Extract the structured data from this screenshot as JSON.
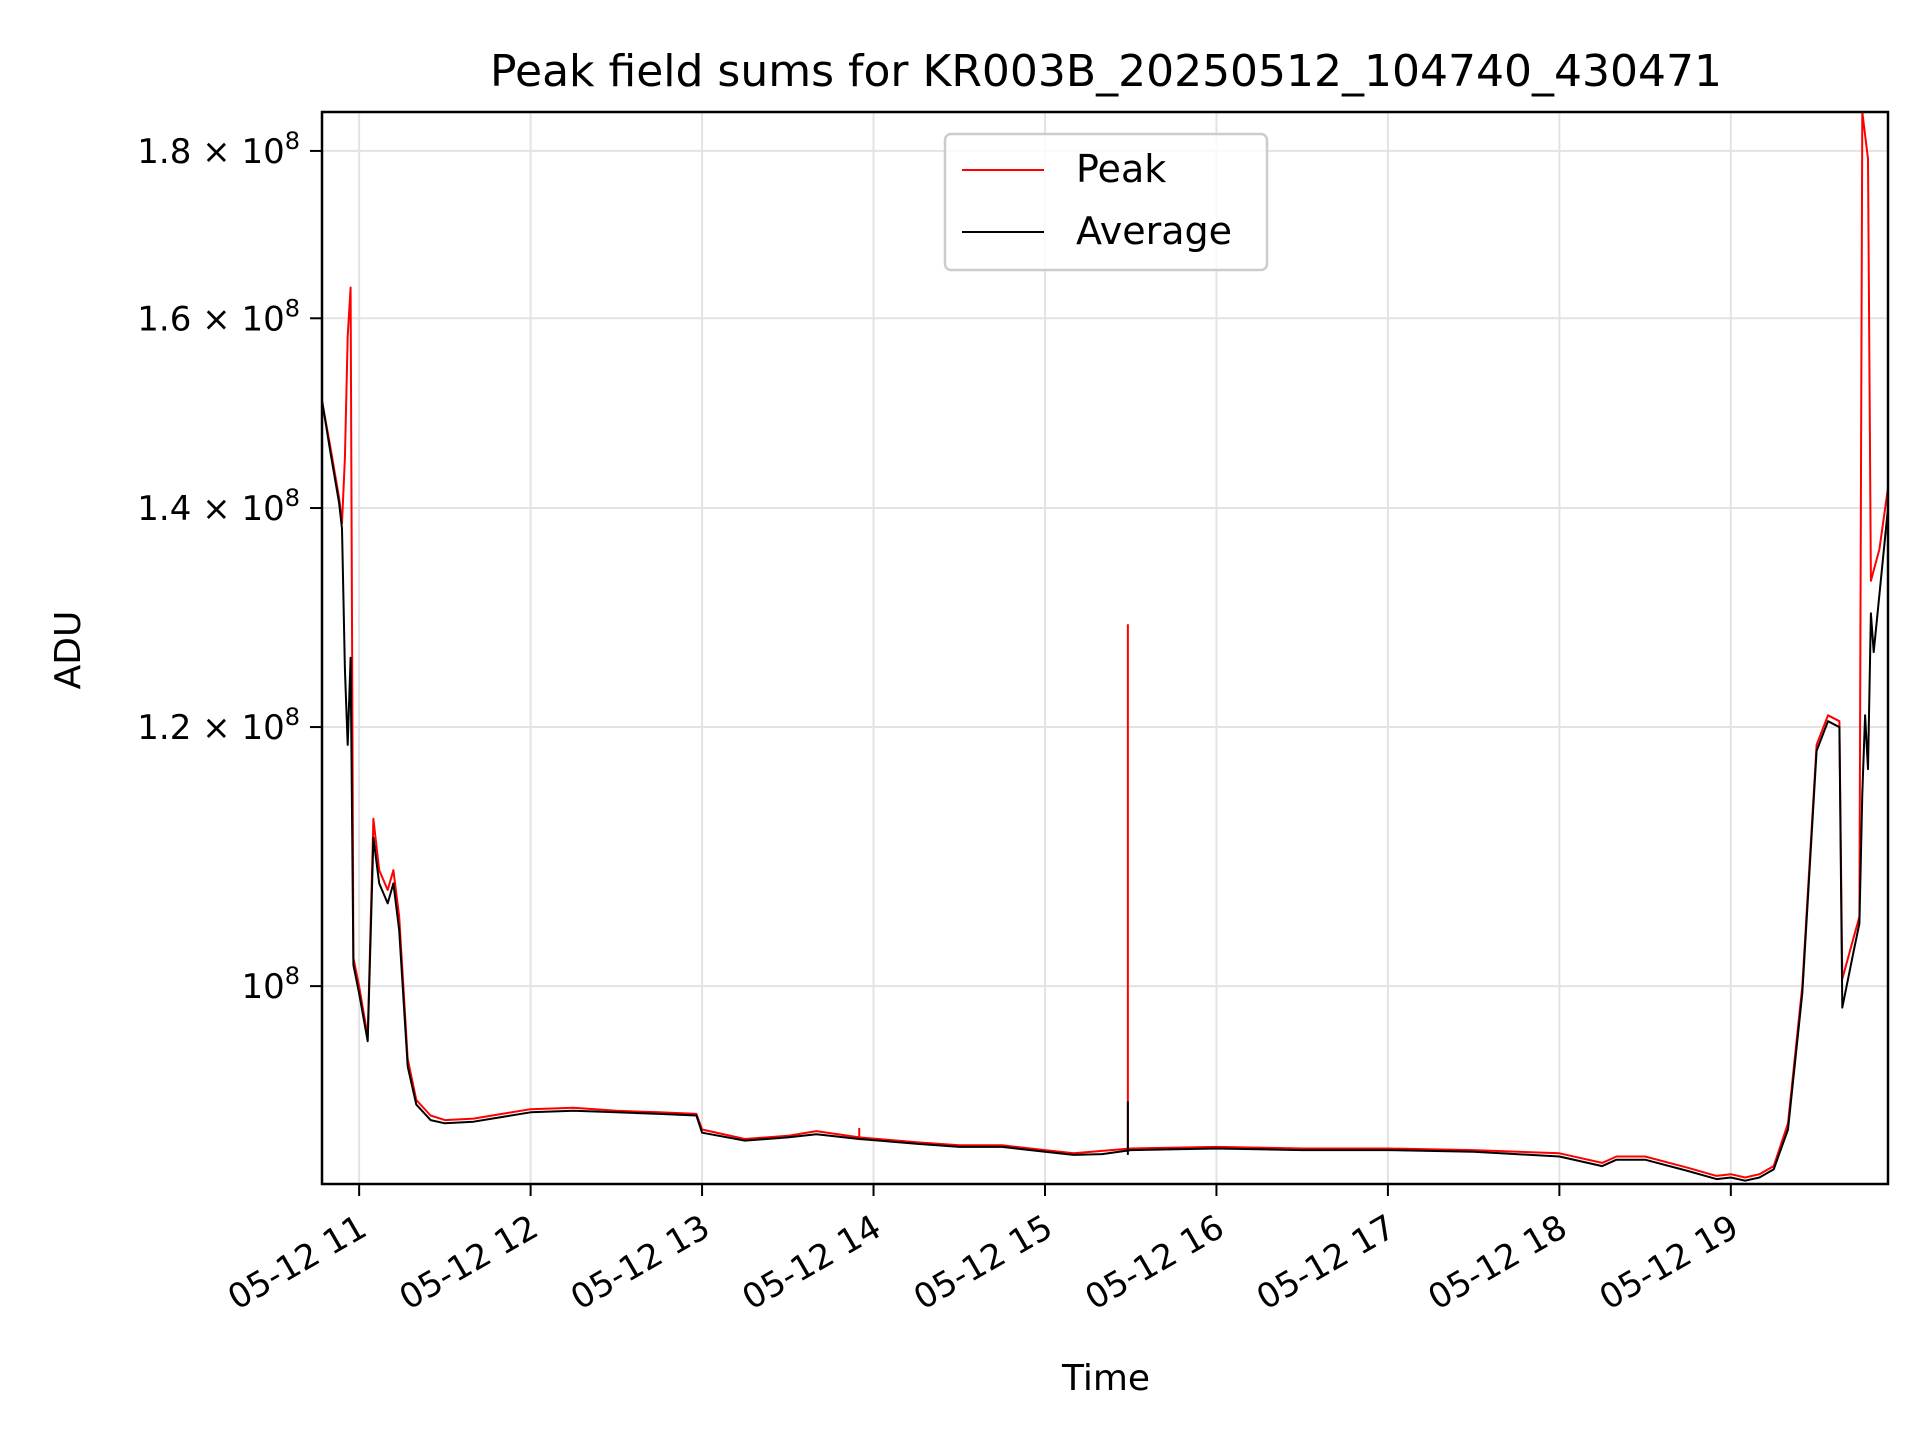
{
  "chart_data": {
    "type": "line",
    "title": "Peak field sums for KR003B_20250512_104740_430471",
    "xlabel": "Time",
    "ylabel": "ADU",
    "yscale": "log",
    "xlim": [
      "05-12 10:47",
      "05-12 19:55"
    ],
    "ylim": [
      87000000,
      185000000
    ],
    "x_ticks": [
      {
        "label": "05-12 11",
        "time": "05-12 11:00"
      },
      {
        "label": "05-12 12",
        "time": "05-12 12:00"
      },
      {
        "label": "05-12 13",
        "time": "05-12 13:00"
      },
      {
        "label": "05-12 14",
        "time": "05-12 14:00"
      },
      {
        "label": "05-12 15",
        "time": "05-12 15:00"
      },
      {
        "label": "05-12 16",
        "time": "05-12 16:00"
      },
      {
        "label": "05-12 17",
        "time": "05-12 17:00"
      },
      {
        "label": "05-12 18",
        "time": "05-12 18:00"
      },
      {
        "label": "05-12 19",
        "time": "05-12 19:00"
      }
    ],
    "y_ticks": [
      {
        "mantissa": "",
        "exp": "8",
        "value": 100000000
      },
      {
        "mantissa": "1.2",
        "exp": "8",
        "value": 120000000
      },
      {
        "mantissa": "1.4",
        "exp": "8",
        "value": 140000000
      },
      {
        "mantissa": "1.6",
        "exp": "8",
        "value": 160000000
      },
      {
        "mantissa": "1.8",
        "exp": "8",
        "value": 180000000
      }
    ],
    "grid": true,
    "legend_position": "upper center",
    "series": [
      {
        "name": "Peak",
        "color": "#ff0000",
        "points": [
          [
            "05-12 10:47",
            151000000
          ],
          [
            "05-12 10:50",
            146000000
          ],
          [
            "05-12 10:53",
            141000000
          ],
          [
            "05-12 10:54",
            138500000
          ],
          [
            "05-12 10:55",
            145000000
          ],
          [
            "05-12 10:56",
            158000000
          ],
          [
            "05-12 10:57",
            163500000
          ],
          [
            "05-12 10:58",
            102000000
          ],
          [
            "05-12 11:00",
            100000000
          ],
          [
            "05-12 11:03",
            96500000
          ],
          [
            "05-12 11:05",
            112500000
          ],
          [
            "05-12 11:07",
            108500000
          ],
          [
            "05-12 11:10",
            107000000
          ],
          [
            "05-12 11:12",
            108500000
          ],
          [
            "05-12 11:14",
            105000000
          ],
          [
            "05-12 11:17",
            95000000
          ],
          [
            "05-12 11:20",
            92300000
          ],
          [
            "05-12 11:25",
            91300000
          ],
          [
            "05-12 11:30",
            91000000
          ],
          [
            "05-12 11:40",
            91100000
          ],
          [
            "05-12 11:50",
            91400000
          ],
          [
            "05-12 12:00",
            91700000
          ],
          [
            "05-12 12:15",
            91800000
          ],
          [
            "05-12 12:30",
            91600000
          ],
          [
            "05-12 12:45",
            91500000
          ],
          [
            "05-12 12:58",
            91400000
          ],
          [
            "05-12 13:00",
            90400000
          ],
          [
            "05-12 13:15",
            89800000
          ],
          [
            "05-12 13:30",
            90000000
          ],
          [
            "05-12 13:40",
            90300000
          ],
          [
            "05-12 13:55",
            89900000
          ],
          [
            "05-12 14:15",
            89600000
          ],
          [
            "05-12 14:30",
            89400000
          ],
          [
            "05-12 14:45",
            89400000
          ],
          [
            "05-12 15:00",
            89100000
          ],
          [
            "05-12 15:10",
            88900000
          ],
          [
            "05-12 15:20",
            89050000
          ],
          [
            "05-12 15:30",
            89200000
          ],
          [
            "05-12 16:00",
            89300000
          ],
          [
            "05-12 16:30",
            89200000
          ],
          [
            "05-12 17:00",
            89200000
          ],
          [
            "05-12 17:30",
            89100000
          ],
          [
            "05-12 18:00",
            88900000
          ],
          [
            "05-12 18:15",
            88300000
          ],
          [
            "05-12 18:20",
            88700000
          ],
          [
            "05-12 18:30",
            88700000
          ],
          [
            "05-12 18:45",
            88000000
          ],
          [
            "05-12 18:55",
            87500000
          ],
          [
            "05-12 19:00",
            87600000
          ],
          [
            "05-12 19:05",
            87400000
          ],
          [
            "05-12 19:10",
            87600000
          ],
          [
            "05-12 19:15",
            88100000
          ],
          [
            "05-12 19:20",
            90800000
          ],
          [
            "05-12 19:25",
            100000000
          ],
          [
            "05-12 19:30",
            118500000
          ],
          [
            "05-12 19:34",
            121000000
          ],
          [
            "05-12 19:38",
            120500000
          ],
          [
            "05-12 19:39",
            100500000
          ],
          [
            "05-12 19:43",
            103500000
          ],
          [
            "05-12 19:45",
            105000000
          ],
          [
            "05-12 19:46",
            185000000
          ],
          [
            "05-12 19:48",
            179000000
          ],
          [
            "05-12 19:49",
            133000000
          ],
          [
            "05-12 19:52",
            136000000
          ],
          [
            "05-12 19:55",
            142000000
          ]
        ],
        "spikes": [
          {
            "time": "05-12 15:29",
            "base": 89000000,
            "peak": 129000000
          },
          {
            "time": "05-12 13:55",
            "base": 89900000,
            "peak": 90500000
          }
        ]
      },
      {
        "name": "Average",
        "color": "#000000",
        "points": [
          [
            "05-12 10:47",
            151000000
          ],
          [
            "05-12 10:50",
            145500000
          ],
          [
            "05-12 10:53",
            140500000
          ],
          [
            "05-12 10:54",
            138000000
          ],
          [
            "05-12 10:55",
            125000000
          ],
          [
            "05-12 10:56",
            118500000
          ],
          [
            "05-12 10:57",
            126000000
          ],
          [
            "05-12 10:58",
            101500000
          ],
          [
            "05-12 11:00",
            99500000
          ],
          [
            "05-12 11:03",
            96200000
          ],
          [
            "05-12 11:05",
            111000000
          ],
          [
            "05-12 11:07",
            107500000
          ],
          [
            "05-12 11:10",
            106000000
          ],
          [
            "05-12 11:12",
            107500000
          ],
          [
            "05-12 11:14",
            104000000
          ],
          [
            "05-12 11:17",
            94500000
          ],
          [
            "05-12 11:20",
            92000000
          ],
          [
            "05-12 11:25",
            91000000
          ],
          [
            "05-12 11:30",
            90800000
          ],
          [
            "05-12 11:40",
            90900000
          ],
          [
            "05-12 11:50",
            91200000
          ],
          [
            "05-12 12:00",
            91500000
          ],
          [
            "05-12 12:15",
            91600000
          ],
          [
            "05-12 12:30",
            91500000
          ],
          [
            "05-12 12:45",
            91400000
          ],
          [
            "05-12 12:58",
            91300000
          ],
          [
            "05-12 13:00",
            90200000
          ],
          [
            "05-12 13:15",
            89700000
          ],
          [
            "05-12 13:30",
            89900000
          ],
          [
            "05-12 13:40",
            90100000
          ],
          [
            "05-12 13:55",
            89800000
          ],
          [
            "05-12 14:15",
            89500000
          ],
          [
            "05-12 14:30",
            89300000
          ],
          [
            "05-12 14:45",
            89300000
          ],
          [
            "05-12 15:00",
            89000000
          ],
          [
            "05-12 15:10",
            88800000
          ],
          [
            "05-12 15:20",
            88850000
          ],
          [
            "05-12 15:30",
            89100000
          ],
          [
            "05-12 16:00",
            89200000
          ],
          [
            "05-12 16:30",
            89100000
          ],
          [
            "05-12 17:00",
            89100000
          ],
          [
            "05-12 17:30",
            89000000
          ],
          [
            "05-12 18:00",
            88700000
          ],
          [
            "05-12 18:15",
            88100000
          ],
          [
            "05-12 18:20",
            88500000
          ],
          [
            "05-12 18:30",
            88500000
          ],
          [
            "05-12 18:45",
            87800000
          ],
          [
            "05-12 18:55",
            87300000
          ],
          [
            "05-12 19:00",
            87400000
          ],
          [
            "05-12 19:05",
            87200000
          ],
          [
            "05-12 19:10",
            87400000
          ],
          [
            "05-12 19:15",
            87900000
          ],
          [
            "05-12 19:20",
            90400000
          ],
          [
            "05-12 19:25",
            99500000
          ],
          [
            "05-12 19:30",
            118000000
          ],
          [
            "05-12 19:34",
            120500000
          ],
          [
            "05-12 19:38",
            120000000
          ],
          [
            "05-12 19:39",
            98500000
          ],
          [
            "05-12 19:43",
            102500000
          ],
          [
            "05-12 19:45",
            104500000
          ],
          [
            "05-12 19:46",
            114500000
          ],
          [
            "05-12 19:47",
            121000000
          ],
          [
            "05-12 19:48",
            116500000
          ],
          [
            "05-12 19:49",
            130000000
          ],
          [
            "05-12 19:50",
            126500000
          ],
          [
            "05-12 19:55",
            140000000
          ]
        ],
        "spikes": [
          {
            "time": "05-12 15:29",
            "base": 88800000,
            "peak": 92200000
          }
        ]
      }
    ]
  }
}
